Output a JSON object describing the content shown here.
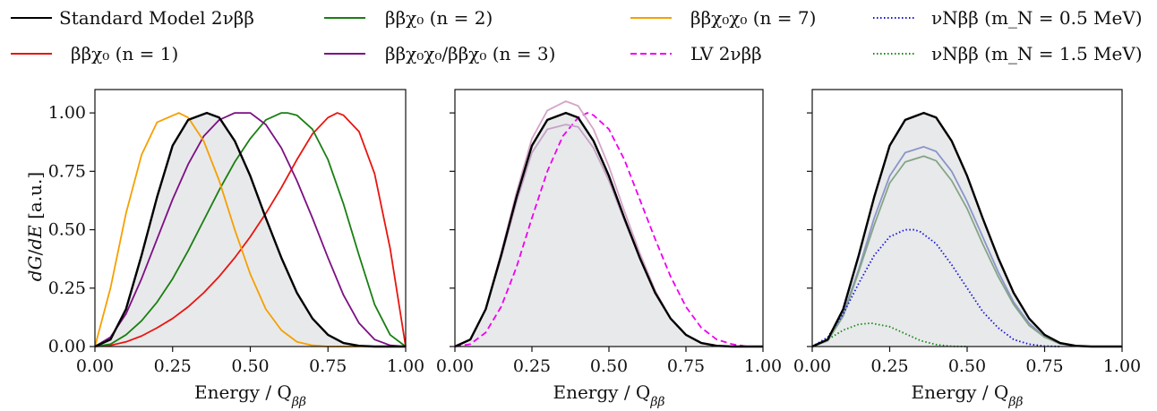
{
  "legend": [
    {
      "key": "sm",
      "label": "Standard Model 2νββ",
      "color": "#000000",
      "dash": "solid"
    },
    {
      "key": "n1",
      "label": "ββχ₀ (n = 1)",
      "color": "#e8150f",
      "dash": "solid"
    },
    {
      "key": "n2",
      "label": "ββχ₀ (n = 2)",
      "color": "#1a7f12",
      "dash": "solid"
    },
    {
      "key": "n3",
      "label": "ββχ₀χ₀/ββχ₀ (n = 3)",
      "color": "#7d0f84",
      "dash": "solid"
    },
    {
      "key": "n7",
      "label": "ββχ₀χ₀ (n = 7)",
      "color": "#f5a000",
      "dash": "solid"
    },
    {
      "key": "lv",
      "label": "LV 2νββ",
      "color": "#ee00ee",
      "dash": "dashed"
    },
    {
      "key": "nu05",
      "label": "νNββ (m_N = 0.5 MeV)",
      "color": "#1414d8",
      "dash": "dotted"
    },
    {
      "key": "nu15",
      "label": "νNββ (m_N = 1.5 MeV)",
      "color": "#148a14",
      "dash": "dotted"
    }
  ],
  "chart_data": [
    {
      "type": "line",
      "panel": "left",
      "xlabel": "Energy / Q_ββ",
      "ylabel": "dG/dE [a.u.]",
      "xlim": [
        0,
        1
      ],
      "ylim": [
        0,
        1.1
      ],
      "xticks": [
        "0.00",
        "0.25",
        "0.50",
        "0.75",
        "1.00"
      ],
      "yticks": [
        "0.00",
        "0.25",
        "0.50",
        "0.75",
        "1.00"
      ],
      "filled_reference": "Standard Model 2νββ",
      "grid": false,
      "series": [
        {
          "name": "Standard Model 2νββ",
          "x": [
            0,
            0.05,
            0.1,
            0.15,
            0.2,
            0.25,
            0.3,
            0.36,
            0.4,
            0.45,
            0.5,
            0.55,
            0.6,
            0.65,
            0.7,
            0.75,
            0.8,
            0.85,
            0.9,
            0.95,
            1.0
          ],
          "values": [
            0,
            0.03,
            0.16,
            0.39,
            0.64,
            0.86,
            0.97,
            1.0,
            0.98,
            0.88,
            0.73,
            0.55,
            0.38,
            0.23,
            0.12,
            0.05,
            0.015,
            0.003,
            0,
            0,
            0
          ]
        },
        {
          "name": "ββχ₀ (n = 1)",
          "x": [
            0,
            0.05,
            0.1,
            0.15,
            0.2,
            0.25,
            0.3,
            0.35,
            0.4,
            0.45,
            0.5,
            0.55,
            0.6,
            0.65,
            0.7,
            0.75,
            0.78,
            0.8,
            0.85,
            0.9,
            0.95,
            1.0
          ],
          "values": [
            0,
            0.005,
            0.02,
            0.045,
            0.08,
            0.12,
            0.17,
            0.23,
            0.3,
            0.38,
            0.47,
            0.57,
            0.68,
            0.8,
            0.91,
            0.98,
            1.0,
            0.99,
            0.92,
            0.74,
            0.42,
            0
          ]
        },
        {
          "name": "ββχ₀ (n = 2)",
          "x": [
            0,
            0.05,
            0.1,
            0.15,
            0.2,
            0.25,
            0.3,
            0.35,
            0.4,
            0.45,
            0.5,
            0.55,
            0.6,
            0.62,
            0.65,
            0.7,
            0.75,
            0.8,
            0.85,
            0.9,
            0.95,
            1.0
          ],
          "values": [
            0,
            0.01,
            0.05,
            0.11,
            0.19,
            0.29,
            0.41,
            0.54,
            0.67,
            0.79,
            0.89,
            0.97,
            1.0,
            1.0,
            0.99,
            0.93,
            0.8,
            0.61,
            0.39,
            0.18,
            0.05,
            0
          ]
        },
        {
          "name": "ββχ₀χ₀/ββχ₀ (n = 3)",
          "x": [
            0,
            0.05,
            0.1,
            0.15,
            0.2,
            0.25,
            0.3,
            0.35,
            0.4,
            0.45,
            0.5,
            0.55,
            0.6,
            0.65,
            0.7,
            0.75,
            0.8,
            0.85,
            0.9,
            0.95,
            1.0
          ],
          "values": [
            0,
            0.04,
            0.14,
            0.29,
            0.46,
            0.63,
            0.78,
            0.9,
            0.97,
            1.0,
            1.0,
            0.95,
            0.85,
            0.71,
            0.55,
            0.38,
            0.22,
            0.1,
            0.03,
            0.005,
            0
          ]
        },
        {
          "name": "ββχ₀χ₀ (n = 7)",
          "x": [
            0,
            0.05,
            0.1,
            0.15,
            0.2,
            0.27,
            0.3,
            0.35,
            0.4,
            0.45,
            0.5,
            0.55,
            0.6,
            0.65,
            0.7,
            0.75,
            0.8,
            0.85,
            0.9,
            0.95,
            1.0
          ],
          "values": [
            0,
            0.25,
            0.57,
            0.82,
            0.96,
            1.0,
            0.98,
            0.88,
            0.71,
            0.5,
            0.31,
            0.16,
            0.07,
            0.02,
            0.005,
            0,
            0,
            0,
            0,
            0,
            0
          ]
        }
      ]
    },
    {
      "type": "line",
      "panel": "middle",
      "xlabel": "Energy / Q_ββ",
      "xlim": [
        0,
        1
      ],
      "ylim": [
        0,
        1.1
      ],
      "xticks": [
        "0.00",
        "0.25",
        "0.50",
        "0.75",
        "1.00"
      ],
      "filled_reference": "Standard Model 2νββ",
      "grid": false,
      "series": [
        {
          "name": "Standard Model 2νββ",
          "x": [
            0,
            0.05,
            0.1,
            0.15,
            0.2,
            0.25,
            0.3,
            0.36,
            0.4,
            0.45,
            0.5,
            0.55,
            0.6,
            0.65,
            0.7,
            0.75,
            0.8,
            0.85,
            0.9,
            0.95,
            1.0
          ],
          "values": [
            0,
            0.03,
            0.16,
            0.39,
            0.64,
            0.86,
            0.97,
            1.0,
            0.98,
            0.88,
            0.73,
            0.55,
            0.38,
            0.23,
            0.12,
            0.05,
            0.015,
            0.003,
            0,
            0,
            0
          ]
        },
        {
          "name": "LV 2νββ",
          "x": [
            0,
            0.05,
            0.1,
            0.15,
            0.2,
            0.25,
            0.3,
            0.35,
            0.4,
            0.43,
            0.45,
            0.5,
            0.55,
            0.6,
            0.65,
            0.7,
            0.75,
            0.8,
            0.85,
            0.9,
            0.95,
            1.0
          ],
          "values": [
            0,
            0.01,
            0.06,
            0.17,
            0.34,
            0.55,
            0.75,
            0.9,
            0.98,
            1.0,
            0.99,
            0.93,
            0.8,
            0.63,
            0.46,
            0.3,
            0.17,
            0.08,
            0.03,
            0.01,
            0,
            0
          ]
        },
        {
          "x": [
            0,
            0.05,
            0.1,
            0.15,
            0.2,
            0.25,
            0.3,
            0.36,
            0.4,
            0.45,
            0.5,
            0.55,
            0.6,
            0.65,
            0.7,
            0.75,
            0.8,
            0.85,
            0.9,
            0.95,
            1.0
          ],
          "values": [
            0,
            0.03,
            0.16,
            0.4,
            0.66,
            0.89,
            1.01,
            1.05,
            1.03,
            0.93,
            0.77,
            0.58,
            0.4,
            0.24,
            0.12,
            0.05,
            0.015,
            0.003,
            0,
            0,
            0
          ]
        },
        {
          "x": [
            0,
            0.05,
            0.1,
            0.15,
            0.2,
            0.25,
            0.3,
            0.36,
            0.4,
            0.45,
            0.5,
            0.55,
            0.6,
            0.65,
            0.7,
            0.75,
            0.8,
            0.85,
            0.9,
            0.95,
            1.0
          ],
          "values": [
            0,
            0.03,
            0.16,
            0.38,
            0.62,
            0.83,
            0.93,
            0.95,
            0.94,
            0.85,
            0.71,
            0.54,
            0.38,
            0.23,
            0.12,
            0.05,
            0.016,
            0.003,
            0,
            0,
            0
          ]
        }
      ]
    },
    {
      "type": "line",
      "panel": "right",
      "xlabel": "Energy / Q_ββ",
      "xlim": [
        0,
        1
      ],
      "ylim": [
        0,
        1.1
      ],
      "xticks": [
        "0.00",
        "0.25",
        "0.50",
        "0.75",
        "1.00"
      ],
      "filled_reference": "Standard Model 2νββ",
      "grid": false,
      "series": [
        {
          "name": "Standard Model 2νββ",
          "x": [
            0,
            0.05,
            0.1,
            0.15,
            0.2,
            0.25,
            0.3,
            0.36,
            0.4,
            0.45,
            0.5,
            0.55,
            0.6,
            0.65,
            0.7,
            0.75,
            0.8,
            0.85,
            0.9,
            0.95,
            1.0
          ],
          "values": [
            0,
            0.03,
            0.16,
            0.39,
            0.64,
            0.86,
            0.97,
            1.0,
            0.98,
            0.88,
            0.73,
            0.55,
            0.38,
            0.23,
            0.12,
            0.05,
            0.015,
            0.003,
            0,
            0,
            0
          ]
        },
        {
          "x": [
            0,
            0.05,
            0.1,
            0.15,
            0.2,
            0.25,
            0.3,
            0.36,
            0.4,
            0.45,
            0.5,
            0.55,
            0.6,
            0.65,
            0.7,
            0.75,
            0.8,
            0.85,
            0.9,
            0.95,
            1.0
          ],
          "values": [
            0,
            0.025,
            0.14,
            0.33,
            0.55,
            0.73,
            0.83,
            0.855,
            0.835,
            0.75,
            0.62,
            0.47,
            0.32,
            0.19,
            0.1,
            0.04,
            0.012,
            0.002,
            0,
            0,
            0
          ]
        },
        {
          "x": [
            0,
            0.05,
            0.1,
            0.15,
            0.2,
            0.25,
            0.3,
            0.36,
            0.4,
            0.45,
            0.5,
            0.55,
            0.6,
            0.65,
            0.7,
            0.75,
            0.8,
            0.85,
            0.9,
            0.95,
            1.0
          ],
          "values": [
            0,
            0.025,
            0.13,
            0.32,
            0.52,
            0.7,
            0.79,
            0.815,
            0.795,
            0.71,
            0.59,
            0.44,
            0.3,
            0.18,
            0.09,
            0.04,
            0.012,
            0.002,
            0,
            0,
            0
          ]
        },
        {
          "name": "νNββ (m_N = 0.5 MeV)",
          "x": [
            0,
            0.05,
            0.1,
            0.15,
            0.2,
            0.25,
            0.3,
            0.33,
            0.35,
            0.4,
            0.45,
            0.5,
            0.55,
            0.6,
            0.65,
            0.7,
            0.75,
            0.8
          ],
          "values": [
            0,
            0.04,
            0.14,
            0.27,
            0.39,
            0.47,
            0.5,
            0.5,
            0.49,
            0.44,
            0.35,
            0.25,
            0.15,
            0.08,
            0.03,
            0.01,
            0.002,
            0
          ]
        },
        {
          "name": "νNββ (m_N = 1.5 MeV)",
          "x": [
            0,
            0.05,
            0.1,
            0.15,
            0.19,
            0.25,
            0.3,
            0.35,
            0.4,
            0.45,
            0.5
          ],
          "values": [
            0,
            0.03,
            0.07,
            0.095,
            0.1,
            0.085,
            0.055,
            0.025,
            0.008,
            0.001,
            0
          ]
        }
      ]
    }
  ]
}
